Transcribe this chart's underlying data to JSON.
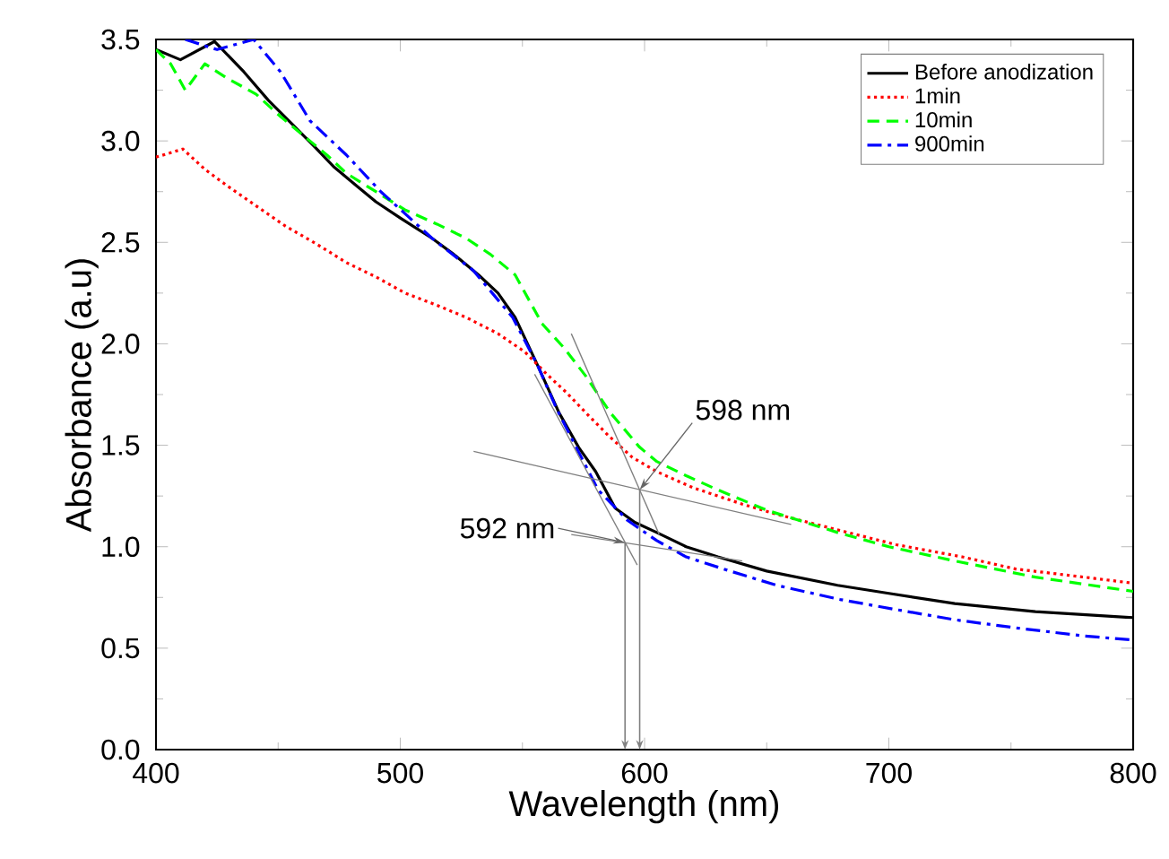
{
  "chart_data": {
    "type": "line",
    "xlabel": "Wavelength (nm)",
    "ylabel": "Absorbance (a.u)",
    "xlim": [
      400,
      800
    ],
    "ylim": [
      0,
      3.5
    ],
    "xticks": [
      400,
      500,
      600,
      700,
      800
    ],
    "yticks": [
      {
        "value": 0,
        "label": "0.0"
      },
      {
        "value": 0.5,
        "label": "0.5"
      },
      {
        "value": 1,
        "label": "1.0"
      },
      {
        "value": 1.5,
        "label": "1.5"
      },
      {
        "value": 2,
        "label": "2.0"
      },
      {
        "value": 2.5,
        "label": "2.5"
      },
      {
        "value": 3,
        "label": "3.0"
      },
      {
        "value": 3.5,
        "label": "3.5"
      }
    ],
    "legend": "top right",
    "grid": false,
    "marker": "none",
    "series": [
      {
        "name": "Before anodization",
        "color": "#000000",
        "line_style": "solid",
        "x": [
          400,
          410,
          424,
          436,
          446,
          456,
          465,
          473,
          482,
          490,
          500,
          513,
          522,
          532,
          540,
          547,
          556,
          565,
          573,
          580,
          588,
          596,
          605,
          617,
          630,
          650,
          679,
          700,
          727,
          760,
          800
        ],
        "values": [
          3.45,
          3.4,
          3.49,
          3.34,
          3.2,
          3.08,
          2.97,
          2.87,
          2.78,
          2.7,
          2.62,
          2.52,
          2.44,
          2.34,
          2.25,
          2.13,
          1.9,
          1.66,
          1.49,
          1.37,
          1.19,
          1.12,
          1.07,
          1.0,
          0.95,
          0.88,
          0.81,
          0.77,
          0.72,
          0.68,
          0.65
        ]
      },
      {
        "name": "1min",
        "color": "#ff0000",
        "line_style": "dotted",
        "x": [
          400,
          411,
          420,
          429,
          441,
          453,
          466,
          478,
          490,
          502,
          515,
          527,
          540,
          551,
          560,
          568,
          576,
          585,
          595,
          605,
          620,
          640,
          654,
          680,
          703,
          730,
          752,
          780,
          800
        ],
        "values": [
          2.92,
          2.96,
          2.86,
          2.78,
          2.68,
          2.58,
          2.49,
          2.4,
          2.33,
          2.25,
          2.19,
          2.13,
          2.05,
          1.96,
          1.85,
          1.76,
          1.66,
          1.55,
          1.44,
          1.37,
          1.29,
          1.21,
          1.16,
          1.08,
          1.01,
          0.95,
          0.89,
          0.85,
          0.82
        ]
      },
      {
        "name": "10min",
        "color": "#00ff00",
        "line_style": "dashed",
        "x": [
          400,
          406,
          412,
          420,
          429,
          441,
          451,
          461,
          470,
          478,
          490,
          502,
          515,
          527,
          537,
          547,
          558,
          567,
          576,
          586,
          598,
          605,
          617,
          630,
          650,
          679,
          700,
          727,
          760,
          800
        ],
        "values": [
          3.45,
          3.38,
          3.25,
          3.38,
          3.31,
          3.23,
          3.12,
          3.02,
          2.93,
          2.84,
          2.75,
          2.66,
          2.59,
          2.52,
          2.44,
          2.34,
          2.1,
          1.98,
          1.84,
          1.66,
          1.49,
          1.42,
          1.35,
          1.28,
          1.18,
          1.07,
          1.0,
          0.93,
          0.85,
          0.78
        ]
      },
      {
        "name": "900min",
        "color": "#0000ff",
        "line_style": "dashdot",
        "x": [
          412,
          425,
          440,
          451,
          463,
          478,
          492,
          503,
          513,
          530,
          546,
          556,
          564,
          572,
          581,
          593,
          605,
          617,
          635,
          654,
          680,
          703,
          727,
          752,
          780,
          800
        ],
        "values": [
          3.5,
          3.45,
          3.5,
          3.34,
          3.1,
          2.93,
          2.75,
          2.63,
          2.52,
          2.36,
          2.13,
          1.9,
          1.68,
          1.49,
          1.28,
          1.13,
          1.03,
          0.95,
          0.88,
          0.81,
          0.74,
          0.69,
          0.64,
          0.6,
          0.56,
          0.54
        ]
      },
      {
        "type": "line",
        "color": "#808080",
        "line_style": "solid",
        "x": [
          530,
          660
        ],
        "values": [
          1.47,
          1.11
        ]
      },
      {
        "type": "line",
        "color": "#808080",
        "line_style": "solid",
        "x": [
          570,
          606
        ],
        "values": [
          2.05,
          1.06
        ]
      },
      {
        "type": "line",
        "color": "#808080",
        "line_style": "solid",
        "x": [
          570,
          640
        ],
        "values": [
          1.06,
          0.93
        ]
      },
      {
        "type": "line",
        "color": "#808080",
        "line_style": "solid",
        "x": [
          555,
          597
        ],
        "values": [
          1.85,
          0.91
        ]
      }
    ],
    "annotations": [
      {
        "text": "598 nm",
        "x": 598,
        "y": 1.28
      },
      {
        "text": "592 nm",
        "x": 592,
        "y": 1.02
      }
    ]
  }
}
